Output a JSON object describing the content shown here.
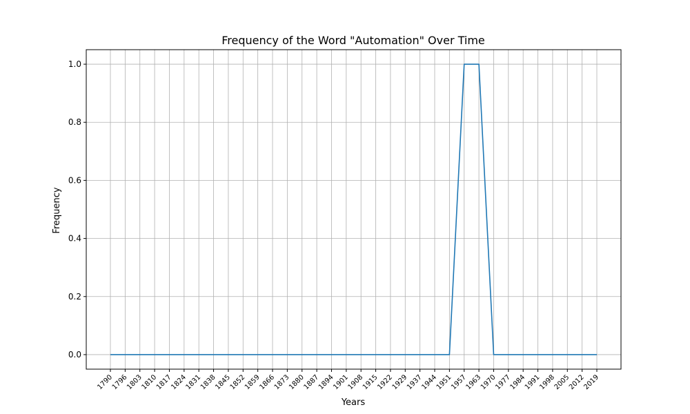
{
  "chart_data": {
    "type": "line",
    "title": "Frequency of the Word \"Automation\" Over Time",
    "xlabel": "Years",
    "ylabel": "Frequency",
    "x": [
      1790,
      1796,
      1803,
      1810,
      1817,
      1824,
      1831,
      1838,
      1845,
      1852,
      1859,
      1866,
      1873,
      1880,
      1887,
      1894,
      1901,
      1908,
      1915,
      1922,
      1929,
      1937,
      1944,
      1951,
      1957,
      1963,
      1970,
      1977,
      1984,
      1991,
      1998,
      2005,
      2012,
      2019
    ],
    "x_tick_labels": [
      "1790",
      "1796",
      "1803",
      "1810",
      "1817",
      "1824",
      "1831",
      "1838",
      "1845",
      "1852",
      "1859",
      "1866",
      "1873",
      "1880",
      "1887",
      "1894",
      "1901",
      "1908",
      "1915",
      "1922",
      "1929",
      "1937",
      "1944",
      "1951",
      "1957",
      "1963",
      "1970",
      "1977",
      "1984",
      "1991",
      "1998",
      "2005",
      "2012",
      "2019"
    ],
    "series": [
      {
        "values": [
          0,
          0,
          0,
          0,
          0,
          0,
          0,
          0,
          0,
          0,
          0,
          0,
          0,
          0,
          0,
          0,
          0,
          0,
          0,
          0,
          0,
          0,
          0,
          0,
          1,
          1,
          0,
          0,
          0,
          0,
          0,
          0,
          0,
          0
        ],
        "color": "#1f77b4"
      }
    ],
    "ylim": [
      -0.05,
      1.05
    ],
    "y_ticks": [
      0.0,
      0.2,
      0.4,
      0.6,
      0.8,
      1.0
    ],
    "y_tick_labels": [
      "0.0",
      "0.2",
      "0.4",
      "0.6",
      "0.8",
      "1.0"
    ],
    "grid": true,
    "legend": "none"
  }
}
